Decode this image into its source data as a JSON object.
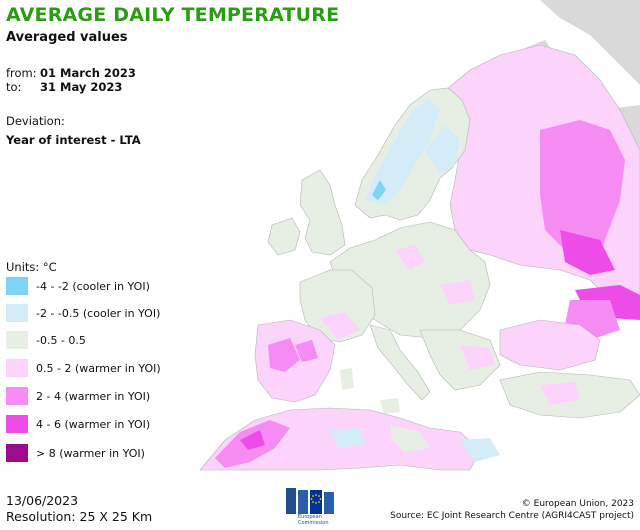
{
  "header": {
    "title": "AVERAGE DAILY TEMPERATURE",
    "subtitle": "Averaged values"
  },
  "period": {
    "from_label": "from:",
    "from_value": "01 March 2023",
    "to_label": "to:",
    "to_value": "31 May 2023"
  },
  "deviation": {
    "label": "Deviation:",
    "value": "Year of interest - LTA"
  },
  "legend": {
    "units": "Units: °C",
    "items": [
      {
        "label": "-4 - -2 (cooler in YOI)",
        "color": "#7fd3f7"
      },
      {
        "label": "-2 - -0.5 (cooler in YOI)",
        "color": "#d4ecf8"
      },
      {
        "label": "-0.5 - 0.5",
        "color": "#e7efe4"
      },
      {
        "label": "0.5 - 2 (warmer in YOI)",
        "color": "#fbd3fb"
      },
      {
        "label": "2 - 4 (warmer in YOI)",
        "color": "#f68cf3"
      },
      {
        "label": "4 - 6 (warmer in YOI)",
        "color": "#ee4ce9"
      },
      {
        "label": "> 8 (warmer in YOI)",
        "color": "#9b0b8f"
      }
    ]
  },
  "footer": {
    "date": "13/06/2023",
    "resolution": "Resolution: 25 X 25 Km",
    "copyright": "© European Union, 2023",
    "source": "Source: EC Joint Research Centre (AGRI4CAST project)",
    "logo_text_1": "European",
    "logo_text_2": "Commission"
  },
  "colors": {
    "title": "#2a9d14",
    "sea": "#ffffff",
    "no_data": "#d9d9d9",
    "border": "#b5b5b5"
  }
}
